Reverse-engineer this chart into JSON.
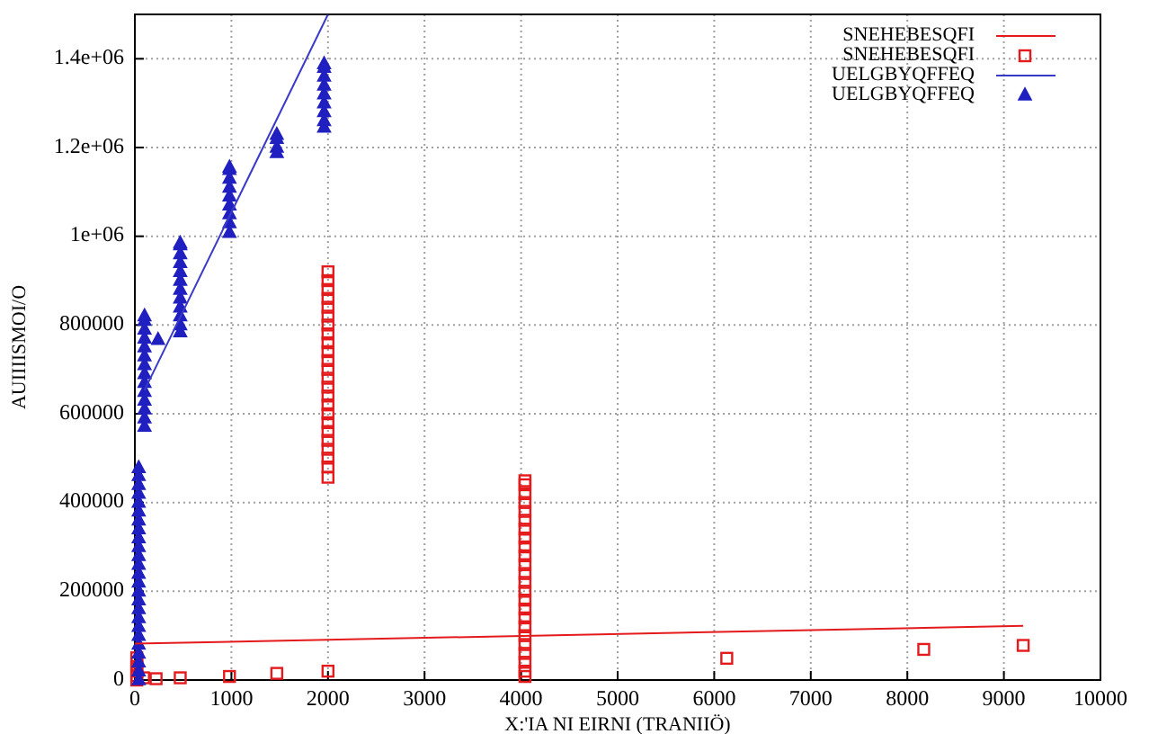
{
  "chart_data": {
    "type": "scatter",
    "xlabel": "X:'IA NI EIRNI (TRANIIÖ)",
    "ylabel": "AUIIIISMOI/O",
    "xlim": [
      0,
      10000
    ],
    "ylim": [
      0,
      1500000
    ],
    "xticks": [
      0,
      1000,
      2000,
      3000,
      4000,
      5000,
      6000,
      7000,
      8000,
      9000,
      10000
    ],
    "yticks": [
      0,
      200000,
      400000,
      600000,
      800000,
      {
        "value": 1000000,
        "label": "1e+06"
      },
      {
        "value": 1200000,
        "label": "1.2e+06"
      },
      {
        "value": 1400000,
        "label": "1.4e+06"
      }
    ],
    "grid": true,
    "legend": "top right",
    "series": [
      {
        "name": "SNEHEBESQFI",
        "type": "line",
        "color": "#e41a1c",
        "x": [
          0,
          9200
        ],
        "values": [
          82000,
          122000
        ]
      },
      {
        "name": "SNEHEBESQFI",
        "marker": "square",
        "color": "#e41a1c",
        "x": [
          20,
          20,
          20,
          20,
          20,
          20,
          90,
          220,
          470,
          980,
          1470,
          2000,
          2000,
          2000,
          2000,
          2000,
          2000,
          2000,
          2000,
          2000,
          2000,
          2000,
          2000,
          2000,
          2000,
          2000,
          2000,
          2000,
          2000,
          2000,
          2000,
          2000,
          2000,
          2000,
          2000,
          2000,
          4040,
          4040,
          4040,
          4040,
          4040,
          4040,
          4040,
          4040,
          4040,
          4040,
          4040,
          4040,
          4040,
          4040,
          4040,
          4040,
          4040,
          4040,
          4040,
          4040,
          4040,
          4040,
          4040,
          4040,
          6130,
          8170,
          9200
        ],
        "values": [
          0,
          10000,
          20000,
          30000,
          40000,
          50000,
          5000,
          3000,
          5000,
          8000,
          15000,
          20000,
          457000,
          480000,
          500000,
          520000,
          540000,
          560000,
          580000,
          600000,
          620000,
          640000,
          660000,
          680000,
          700000,
          720000,
          740000,
          760000,
          780000,
          800000,
          820000,
          840000,
          860000,
          880000,
          900000,
          920000,
          8000,
          20000,
          40000,
          60000,
          80000,
          100000,
          120000,
          140000,
          160000,
          180000,
          200000,
          220000,
          240000,
          260000,
          280000,
          300000,
          320000,
          340000,
          360000,
          380000,
          400000,
          420000,
          440000,
          449000,
          49000,
          69000,
          78000
        ]
      },
      {
        "name": "UELGBYQFFEQ",
        "type": "line",
        "color": "#3a3ac8",
        "x": [
          100,
          2000
        ],
        "values": [
          653000,
          1500000
        ]
      },
      {
        "name": "UELGBYQFFEQ",
        "marker": "triangle",
        "color": "#2020c0",
        "x": [
          40,
          40,
          40,
          40,
          40,
          40,
          40,
          40,
          40,
          40,
          40,
          40,
          40,
          40,
          40,
          40,
          40,
          40,
          40,
          40,
          40,
          40,
          40,
          40,
          40,
          100,
          100,
          100,
          100,
          100,
          100,
          100,
          100,
          100,
          100,
          100,
          100,
          100,
          100,
          240,
          470,
          470,
          470,
          470,
          470,
          470,
          470,
          470,
          470,
          470,
          470,
          470,
          980,
          980,
          980,
          980,
          980,
          980,
          980,
          980,
          980,
          1470,
          1470,
          1470,
          1470,
          1960,
          1960,
          1960,
          1960,
          1960,
          1960,
          1960,
          1960,
          1960
        ],
        "values": [
          0,
          20000,
          40000,
          60000,
          80000,
          100000,
          120000,
          140000,
          160000,
          180000,
          200000,
          220000,
          240000,
          260000,
          280000,
          300000,
          320000,
          340000,
          360000,
          380000,
          400000,
          420000,
          440000,
          460000,
          478000,
          571000,
          590000,
          610000,
          630000,
          650000,
          670000,
          690000,
          710000,
          730000,
          750000,
          770000,
          790000,
          810000,
          820000,
          767000,
          784000,
          800000,
          820000,
          840000,
          860000,
          880000,
          900000,
          920000,
          940000,
          960000,
          980000,
          984000,
          1008000,
          1030000,
          1050000,
          1070000,
          1090000,
          1110000,
          1130000,
          1150000,
          1155000,
          1188000,
          1200000,
          1220000,
          1229000,
          1245000,
          1260000,
          1280000,
          1300000,
          1320000,
          1340000,
          1360000,
          1380000,
          1388000
        ]
      }
    ]
  }
}
